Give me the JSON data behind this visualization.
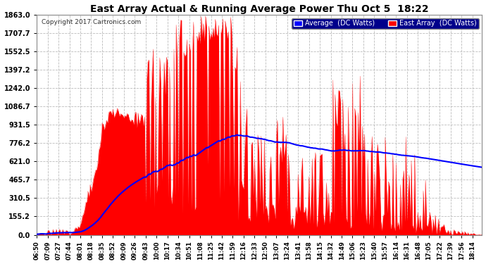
{
  "title": "East Array Actual & Running Average Power Thu Oct 5  18:22",
  "copyright": "Copyright 2017 Cartronics.com",
  "legend_avg": "Average  (DC Watts)",
  "legend_east": "East Array  (DC Watts)",
  "yticks": [
    0.0,
    155.2,
    310.5,
    465.7,
    621.0,
    776.2,
    931.5,
    1086.7,
    1242.0,
    1397.2,
    1552.5,
    1707.7,
    1863.0
  ],
  "ymax": 1863.0,
  "ymin": 0.0,
  "bg_color": "#ffffff",
  "plot_bg_color": "#ffffff",
  "grid_color": "#bbbbbb",
  "fill_color": "#ff0000",
  "line_color": "#0000ff",
  "title_color": "#000000",
  "xtick_labels": [
    "06:50",
    "07:09",
    "07:27",
    "07:44",
    "08:01",
    "08:18",
    "08:35",
    "08:52",
    "09:09",
    "09:26",
    "09:43",
    "10:00",
    "10:17",
    "10:34",
    "10:51",
    "11:08",
    "11:25",
    "11:42",
    "11:59",
    "12:16",
    "12:33",
    "12:50",
    "13:07",
    "13:24",
    "13:41",
    "13:58",
    "14:15",
    "14:32",
    "14:49",
    "15:06",
    "15:23",
    "15:40",
    "15:57",
    "16:14",
    "16:31",
    "16:48",
    "17:05",
    "17:22",
    "17:39",
    "17:56",
    "18:14"
  ],
  "n_ticks": 41,
  "points_per_tick": 10
}
